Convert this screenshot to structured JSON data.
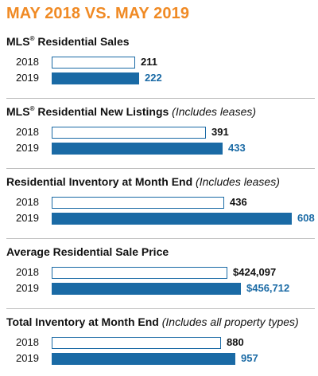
{
  "header": {
    "title": "MAY 2018 VS. MAY 2019"
  },
  "colors": {
    "title": "#f08a24",
    "bar_2019": "#1a6aa5",
    "bar_2018_border": "#1a6aa5",
    "divider": "#bfbfbf"
  },
  "chart_data": [
    {
      "type": "bar",
      "orientation": "horizontal",
      "title_main": "MLS",
      "title_reg": "®",
      "title_rest": " Residential Sales",
      "title_note": "",
      "categories": [
        "2018",
        "2019"
      ],
      "values": [
        211,
        222
      ],
      "labels": [
        "211",
        "222"
      ],
      "xlim": [
        0,
        620
      ]
    },
    {
      "type": "bar",
      "orientation": "horizontal",
      "title_main": "MLS",
      "title_reg": "®",
      "title_rest": " Residential New Listings",
      "title_note": " (Includes leases)",
      "categories": [
        "2018",
        "2019"
      ],
      "values": [
        391,
        433
      ],
      "labels": [
        "391",
        "433"
      ],
      "xlim": [
        0,
        620
      ]
    },
    {
      "type": "bar",
      "orientation": "horizontal",
      "title_main": "Residential Inventory at Month End",
      "title_reg": "",
      "title_rest": "",
      "title_note": " (Includes leases)",
      "categories": [
        "2018",
        "2019"
      ],
      "values": [
        436,
        608
      ],
      "labels": [
        "436",
        "608"
      ],
      "xlim": [
        0,
        620
      ]
    },
    {
      "type": "bar",
      "orientation": "horizontal",
      "title_main": "Average Residential Sale Price",
      "title_reg": "",
      "title_rest": "",
      "title_note": "",
      "categories": [
        "2018",
        "2019"
      ],
      "values": [
        424097,
        456712
      ],
      "labels": [
        "$424,097",
        "$456,712"
      ],
      "xlim": [
        0,
        590000
      ]
    },
    {
      "type": "bar",
      "orientation": "horizontal",
      "title_main": "Total Inventory at Month End",
      "title_reg": "",
      "title_rest": "",
      "title_note": " (Includes all property types)",
      "categories": [
        "2018",
        "2019"
      ],
      "values": [
        880,
        957
      ],
      "labels": [
        "880",
        "957"
      ],
      "xlim": [
        0,
        1275
      ]
    }
  ]
}
